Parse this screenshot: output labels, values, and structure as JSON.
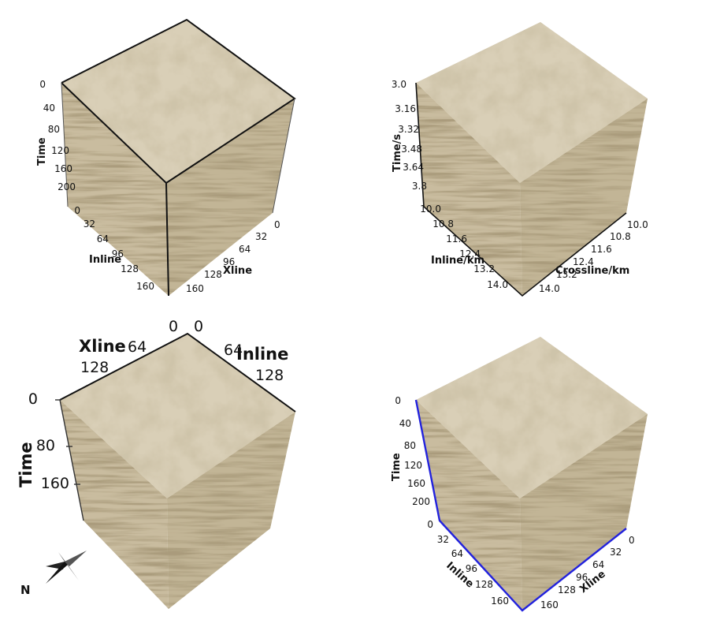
{
  "panel_a": {
    "time_label": "Time",
    "inline_label": "Inline",
    "xline_label": "Xline",
    "time_ticks": [
      "0",
      "40",
      "80",
      "120",
      "160",
      "200"
    ],
    "inline_ticks": [
      "0",
      "32",
      "64",
      "96",
      "128",
      "160"
    ],
    "xline_ticks": [
      "0",
      "32",
      "64",
      "96",
      "128",
      "160"
    ]
  },
  "panel_b": {
    "time_label": "Time/s",
    "inline_label": "Inline/km",
    "xline_label": "Crossline/km",
    "time_ticks": [
      "3.0",
      "3.16",
      "3.32",
      "3.48",
      "3.64",
      "3.8"
    ],
    "inline_ticks": [
      "10.0",
      "10.8",
      "11.6",
      "12.4",
      "13.2",
      "14.0"
    ],
    "xline_ticks": [
      "10.0",
      "10.8",
      "11.6",
      "12.4",
      "13.2",
      "14.0"
    ]
  },
  "panel_c": {
    "time_label": "Time",
    "xline_label": "Xline",
    "inline_label": "Inline",
    "time_ticks": [
      "0",
      "80",
      "160"
    ],
    "xline_ticks": [
      "0",
      "64",
      "128"
    ],
    "inline_ticks": [
      "0",
      "64",
      "128"
    ],
    "compass_label": "N"
  },
  "panel_d": {
    "time_label": "Time",
    "inline_label": "Inline",
    "xline_label": "Xline",
    "time_ticks": [
      "0",
      "40",
      "80",
      "120",
      "160",
      "200"
    ],
    "inline_ticks": [
      "0",
      "32",
      "64",
      "96",
      "128",
      "160"
    ],
    "xline_ticks": [
      "0",
      "32",
      "64",
      "96",
      "128",
      "160"
    ],
    "axis_color": "#2222dd"
  },
  "colors": {
    "cube_light": "#dcd2bc",
    "cube_dark": "#7d6a45",
    "edge": "#111111"
  }
}
